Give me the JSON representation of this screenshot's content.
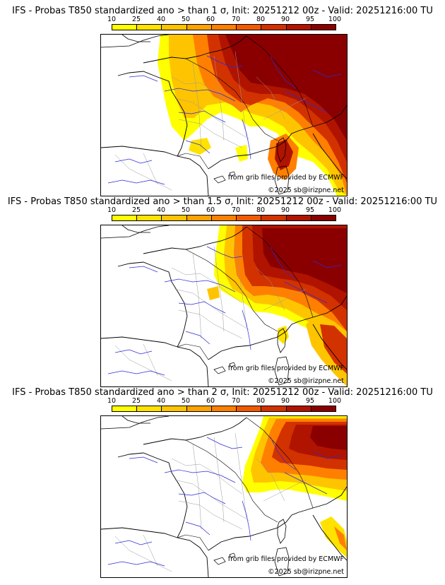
{
  "legend": {
    "ticks": [
      "10",
      "25",
      "40",
      "50",
      "60",
      "70",
      "80",
      "90",
      "95",
      "100"
    ],
    "colors": [
      "#ffff00",
      "#ffe200",
      "#ffc400",
      "#ffa200",
      "#ff7f00",
      "#f25a00",
      "#d23200",
      "#b01400",
      "#8a0000"
    ]
  },
  "credits": {
    "source": "from grib files provided by ECMWF",
    "copyright": "©2025 sb@irizpne.net"
  },
  "panels": [
    {
      "title": "IFS - Probas T850  standardized ano > than 1 σ, Init: 20251212 00z - Valid: 20251216:00 TU"
    },
    {
      "title": "IFS - Probas T850  standardized ano > than 1.5 σ, Init: 20251212 00z - Valid: 20251216:00 TU"
    },
    {
      "title": "IFS - Probas T850  standardized ano > than 2 σ, Init: 20251212 00z - Valid: 20251216:00 TU"
    }
  ]
}
